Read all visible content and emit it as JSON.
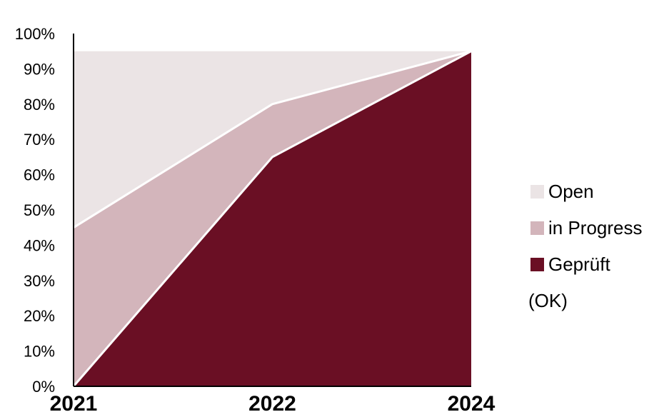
{
  "chart_data": {
    "type": "area",
    "stacked": true,
    "categories": [
      "2021",
      "2022",
      "2024"
    ],
    "series": [
      {
        "name": "Geprüft (OK)",
        "values": [
          0,
          65,
          95
        ],
        "color": "#6a0f24"
      },
      {
        "name": "in Progress",
        "values": [
          45,
          15,
          0
        ],
        "color": "#d3b5bb"
      },
      {
        "name": "Open",
        "values": [
          50,
          15,
          0
        ],
        "color": "#ebe4e5"
      }
    ],
    "y_tick_labels": [
      "0%",
      "10%",
      "20%",
      "30%",
      "40%",
      "50%",
      "60%",
      "70%",
      "80%",
      "90%",
      "100%"
    ],
    "ylim": [
      0,
      100
    ],
    "grid": false,
    "legend": {
      "position": "right",
      "items": [
        {
          "label": "Open",
          "color": "#ebe4e5"
        },
        {
          "label": "in Progress",
          "color": "#d3b5bb"
        },
        {
          "label": "Geprüft",
          "label_cont": "(OK)",
          "color": "#6a0f24"
        }
      ]
    },
    "axis_color": "#000000",
    "series_divider_color": "#ffffff"
  }
}
